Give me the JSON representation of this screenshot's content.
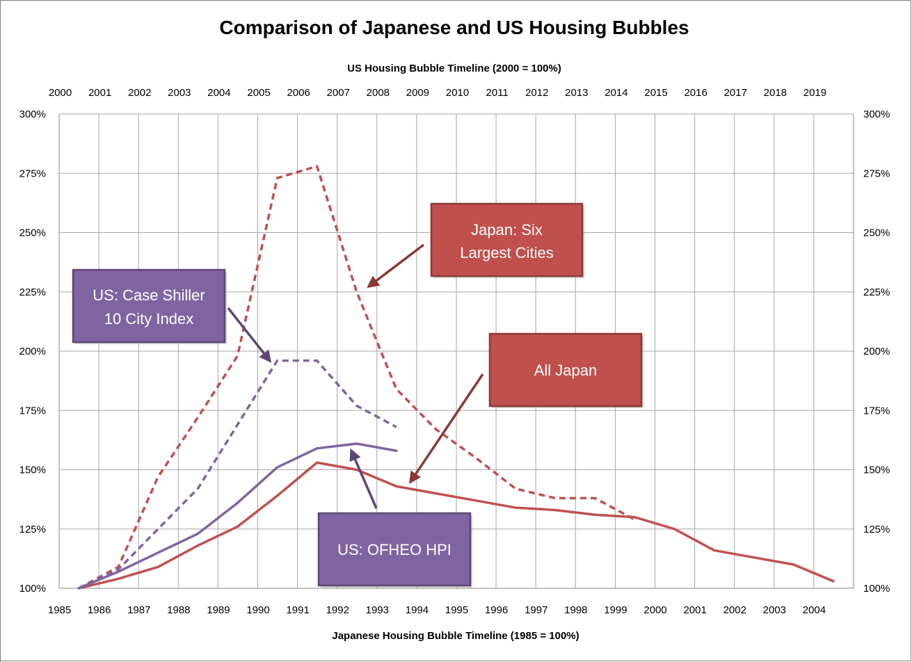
{
  "chart_data": {
    "type": "line",
    "title": "Comparison of Japanese and US Housing Bubbles",
    "top_axis_label": "US Housing Bubble Timeline (2000 = 100%)",
    "xlabel": "Japanese Housing Bubble Timeline (1985 = 100%)",
    "ylabel": "",
    "x_bottom_ticks": [
      "1985",
      "1986",
      "1987",
      "1988",
      "1989",
      "1990",
      "1991",
      "1992",
      "1993",
      "1994",
      "1995",
      "1996",
      "1997",
      "1998",
      "1999",
      "2000",
      "2001",
      "2002",
      "2003",
      "2004"
    ],
    "x_top_ticks": [
      "2000",
      "2001",
      "2002",
      "2003",
      "2004",
      "2005",
      "2006",
      "2007",
      "2008",
      "2009",
      "2010",
      "2011",
      "2012",
      "2013",
      "2014",
      "2015",
      "2016",
      "2017",
      "2018",
      "2019"
    ],
    "y_ticks": [
      "100%",
      "125%",
      "150%",
      "175%",
      "200%",
      "225%",
      "250%",
      "275%",
      "300%"
    ],
    "ylim": [
      100,
      300
    ],
    "grid": true,
    "series": [
      {
        "key": "japan_six_cities",
        "color": "#c0504d",
        "dash": true,
        "values": [
          100,
          109,
          147,
          172,
          198,
          273,
          278,
          225,
          184,
          167,
          155,
          142,
          138,
          138,
          129
        ]
      },
      {
        "key": "all_japan",
        "color": "#c0504d",
        "dash": false,
        "values": [
          100,
          104,
          109,
          118,
          126,
          139,
          153,
          150,
          143,
          140,
          137,
          134,
          133,
          131,
          130,
          125,
          116,
          113,
          110,
          103
        ]
      },
      {
        "key": "us_case_shiller",
        "color": "#8064a2",
        "dash": true,
        "values": [
          100,
          108,
          125,
          142,
          169,
          196,
          196,
          177,
          168
        ]
      },
      {
        "key": "us_ofheo",
        "color": "#8064a2",
        "dash": false,
        "values": [
          100,
          107,
          115,
          123,
          136,
          151,
          159,
          161,
          158
        ]
      }
    ],
    "annotations": [
      {
        "key": "japan_six",
        "lines": [
          "Japan: Six",
          "Largest Cities"
        ],
        "fill": "#c0504d",
        "border": "#8c3836"
      },
      {
        "key": "case_shiller",
        "lines": [
          "US: Case Shiller",
          "10 City Index"
        ],
        "fill": "#8064a2",
        "border": "#5c4776"
      },
      {
        "key": "all_japan",
        "lines": [
          "All Japan"
        ],
        "fill": "#c0504d",
        "border": "#8c3836"
      },
      {
        "key": "ofheo",
        "lines": [
          "US: OFHEO HPI"
        ],
        "fill": "#8064a2",
        "border": "#5c4776"
      }
    ]
  }
}
